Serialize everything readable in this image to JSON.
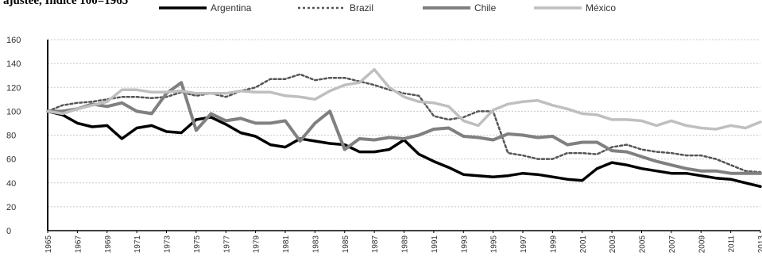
{
  "chart_data": {
    "type": "line",
    "title": "ajustee, Indice 100=1965",
    "xlabel": "",
    "ylabel": "",
    "ylim": [
      0,
      160
    ],
    "yticks": [
      0,
      20,
      40,
      60,
      80,
      100,
      120,
      140,
      160
    ],
    "xticks": [
      "1965",
      "1967",
      "1969",
      "1971",
      "1973",
      "1975",
      "1977",
      "1979",
      "1981",
      "1983",
      "1985",
      "1987",
      "1989",
      "1991",
      "1993",
      "1995",
      "1997",
      "1999",
      "2001",
      "2003",
      "2005",
      "2007",
      "2009",
      "2011",
      "2013"
    ],
    "grid": "horizontal dashed",
    "legend_position": "top",
    "x": [
      1965,
      1966,
      1967,
      1968,
      1969,
      1970,
      1971,
      1972,
      1973,
      1974,
      1975,
      1976,
      1977,
      1978,
      1979,
      1980,
      1981,
      1982,
      1983,
      1984,
      1985,
      1986,
      1987,
      1988,
      1989,
      1990,
      1991,
      1992,
      1993,
      1994,
      1995,
      1996,
      1997,
      1998,
      1999,
      2000,
      2001,
      2002,
      2003,
      2004,
      2005,
      2006,
      2007,
      2008,
      2009,
      2010,
      2011,
      2012,
      2013
    ],
    "series": [
      {
        "name": "Argentina",
        "color": "#000000",
        "style": "solid",
        "width": 3.5,
        "values": [
          100,
          97,
          90,
          87,
          88,
          77,
          86,
          88,
          83,
          82,
          93,
          95,
          89,
          82,
          79,
          72,
          70,
          77,
          75,
          73,
          72,
          66,
          66,
          68,
          76,
          64,
          58,
          53,
          47,
          46,
          45,
          46,
          48,
          47,
          45,
          43,
          42,
          52,
          57,
          55,
          52,
          50,
          48,
          48,
          46,
          44,
          43,
          40,
          37
        ]
      },
      {
        "name": "Brazil",
        "color": "#555555",
        "style": "dotted",
        "width": 2.5,
        "values": [
          100,
          105,
          107,
          108,
          110,
          112,
          112,
          111,
          112,
          116,
          113,
          115,
          112,
          117,
          120,
          127,
          127,
          131,
          126,
          128,
          128,
          125,
          122,
          118,
          115,
          113,
          96,
          93,
          95,
          100,
          100,
          65,
          63,
          60,
          60,
          65,
          65,
          64,
          70,
          72,
          68,
          66,
          65,
          63,
          63,
          60,
          55,
          50,
          49
        ]
      },
      {
        "name": "Chile",
        "color": "#808080",
        "style": "solid",
        "width": 4,
        "values": [
          100,
          100,
          102,
          106,
          104,
          107,
          100,
          98,
          115,
          124,
          84,
          98,
          92,
          94,
          90,
          90,
          92,
          75,
          90,
          100,
          68,
          77,
          76,
          78,
          77,
          80,
          85,
          86,
          79,
          78,
          76,
          81,
          80,
          78,
          79,
          72,
          74,
          74,
          67,
          66,
          62,
          58,
          55,
          52,
          50,
          50,
          48,
          48,
          48
        ]
      },
      {
        "name": "México",
        "color": "#bfbfbf",
        "style": "solid",
        "width": 3.5,
        "values": [
          100,
          98,
          102,
          105,
          108,
          118,
          118,
          116,
          116,
          117,
          115,
          115,
          115,
          117,
          116,
          116,
          113,
          112,
          110,
          117,
          122,
          124,
          135,
          120,
          112,
          108,
          107,
          104,
          92,
          88,
          101,
          106,
          108,
          109,
          105,
          102,
          98,
          97,
          93,
          93,
          92,
          88,
          92,
          88,
          86,
          85,
          88,
          86,
          91
        ]
      }
    ]
  }
}
